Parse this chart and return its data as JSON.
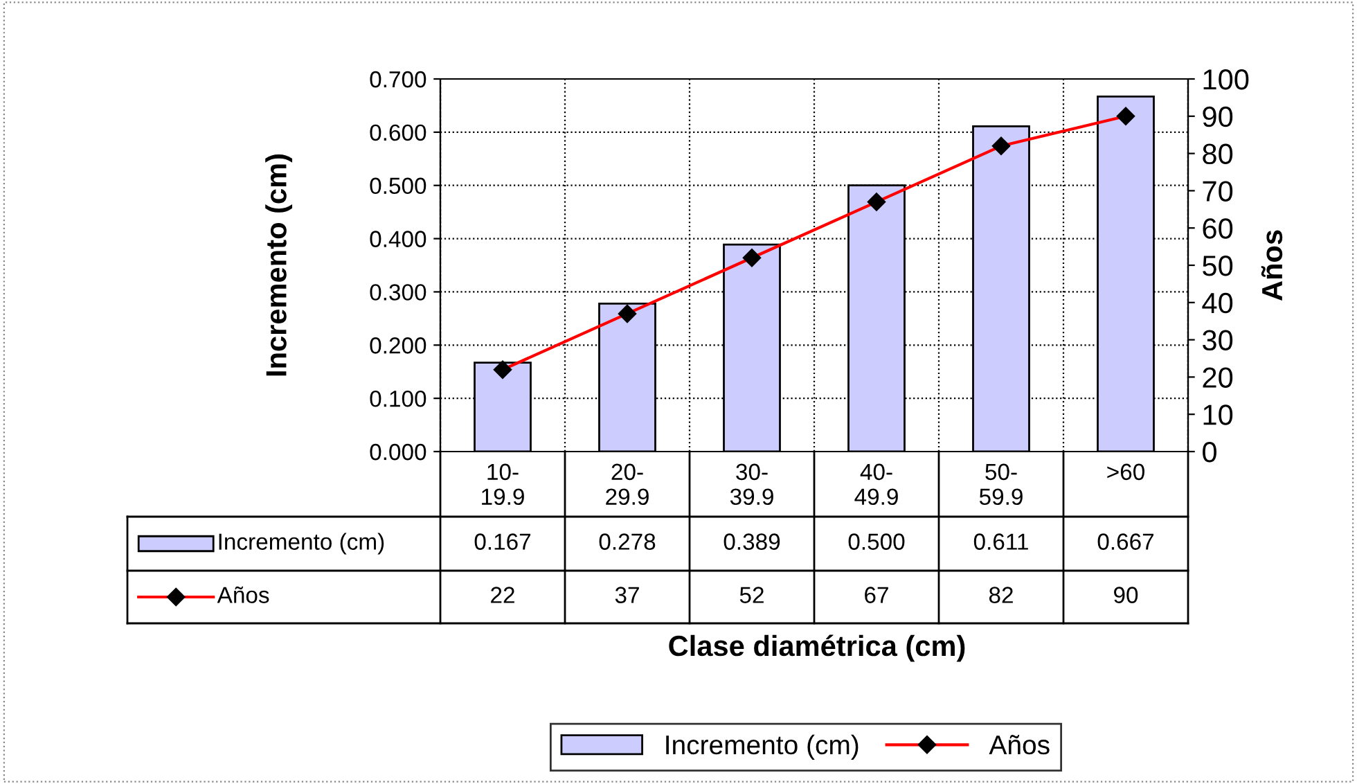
{
  "chart_data": {
    "type": "bar",
    "xlabel": "Clase diamétrica (cm)",
    "ylabel": "Incremento (cm)",
    "y2label": "Años",
    "categories": [
      "10-\n19.9",
      "20-\n29.9",
      "30-\n39.9",
      "40-\n49.9",
      "50-\n59.9",
      ">60"
    ],
    "series": [
      {
        "name": "Incremento (cm)",
        "color": "#ccccff",
        "values": [
          0.167,
          0.278,
          0.389,
          0.5,
          0.611,
          0.667
        ],
        "value_labels": [
          "0.167",
          "0.278",
          "0.389",
          "0.500",
          "0.611",
          "0.667"
        ]
      },
      {
        "name": "Años",
        "type": "line",
        "axis": "y2",
        "color": "#ff0000",
        "marker": "diamond",
        "line_style": "solid",
        "values": [
          22,
          37,
          52,
          67,
          82,
          90
        ],
        "value_labels": [
          "22",
          "37",
          "52",
          "67",
          "82",
          "90"
        ]
      }
    ],
    "ylim": [
      0,
      0.7
    ],
    "yticks": [
      {
        "value": 0,
        "label": "0.000"
      },
      {
        "value": 0.1,
        "label": "0.100"
      },
      {
        "value": 0.2,
        "label": "0.200"
      },
      {
        "value": 0.3,
        "label": "0.300"
      },
      {
        "value": 0.4,
        "label": "0.400"
      },
      {
        "value": 0.5,
        "label": "0.500"
      },
      {
        "value": 0.6,
        "label": "0.600"
      },
      {
        "value": 0.7,
        "label": "0.700"
      }
    ],
    "y2lim": [
      0,
      100
    ],
    "y2ticks": [
      0,
      10,
      20,
      30,
      40,
      50,
      60,
      70,
      80,
      90,
      100
    ],
    "grid": true,
    "legend": "bottom"
  }
}
